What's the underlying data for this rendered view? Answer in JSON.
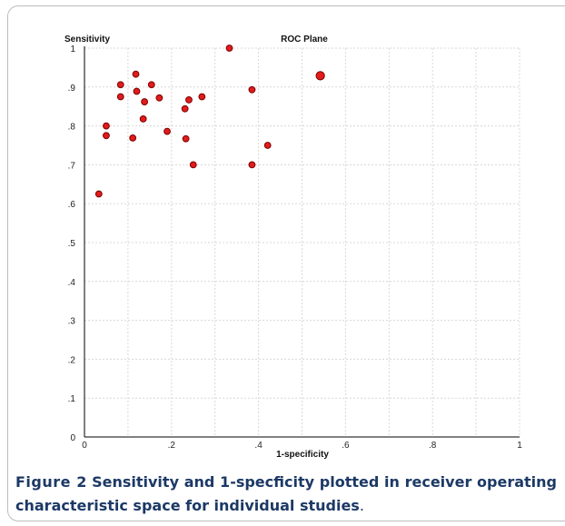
{
  "chart_data": {
    "type": "scatter",
    "title": "ROC Plane",
    "xlabel": "1-specificity",
    "ylabel": "Sensitivity",
    "xlim": [
      0,
      1
    ],
    "ylim": [
      0,
      1
    ],
    "x_ticks": [
      "0",
      ".2",
      ".4",
      ".6",
      ".8",
      "1"
    ],
    "y_ticks": [
      "0",
      ".1",
      ".2",
      ".3",
      ".4",
      ".5",
      ".6",
      ".7",
      ".8",
      ".9",
      "1"
    ],
    "grid": true,
    "marker_color": "#e21b1b",
    "points": [
      {
        "x": 0.033,
        "y": 0.625
      },
      {
        "x": 0.05,
        "y": 0.8
      },
      {
        "x": 0.05,
        "y": 0.775
      },
      {
        "x": 0.083,
        "y": 0.875
      },
      {
        "x": 0.083,
        "y": 0.906
      },
      {
        "x": 0.111,
        "y": 0.769
      },
      {
        "x": 0.118,
        "y": 0.933
      },
      {
        "x": 0.12,
        "y": 0.889
      },
      {
        "x": 0.135,
        "y": 0.818
      },
      {
        "x": 0.138,
        "y": 0.862
      },
      {
        "x": 0.154,
        "y": 0.906
      },
      {
        "x": 0.172,
        "y": 0.872
      },
      {
        "x": 0.19,
        "y": 0.786
      },
      {
        "x": 0.231,
        "y": 0.844
      },
      {
        "x": 0.233,
        "y": 0.767
      },
      {
        "x": 0.24,
        "y": 0.867
      },
      {
        "x": 0.25,
        "y": 0.7
      },
      {
        "x": 0.27,
        "y": 0.875
      },
      {
        "x": 0.333,
        "y": 1.0
      },
      {
        "x": 0.385,
        "y": 0.7
      },
      {
        "x": 0.385,
        "y": 0.893
      },
      {
        "x": 0.421,
        "y": 0.75
      },
      {
        "x": 0.542,
        "y": 0.929,
        "large": true
      }
    ]
  },
  "caption": {
    "label": "Figure 2",
    "text": "Sensitivity and 1-specficity plotted in receiver operating characteristic space for individual studies",
    "end": "."
  }
}
